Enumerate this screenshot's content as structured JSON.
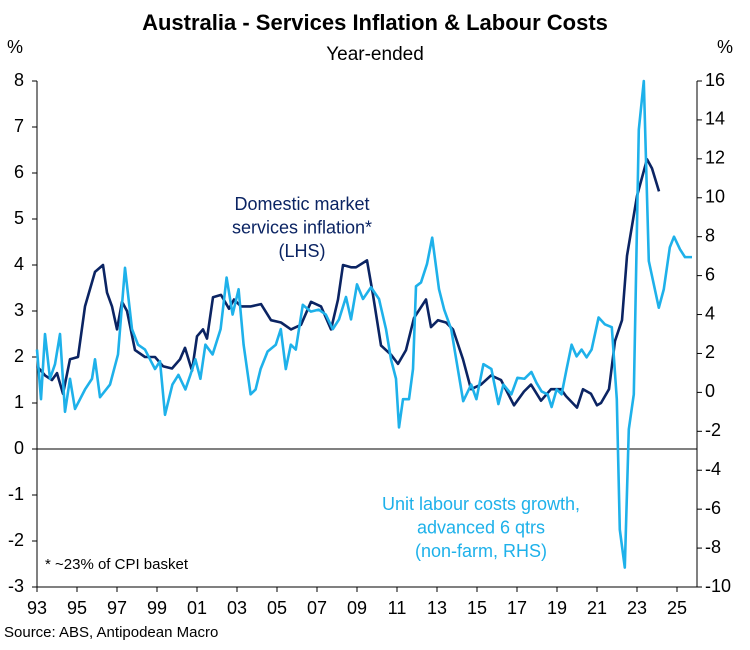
{
  "chart_data": {
    "type": "line",
    "title": "Australia - Services Inflation & Labour Costs",
    "subtitle": "Year-ended",
    "ylabel": "%",
    "y2label": "%",
    "xlim": [
      1993,
      2026
    ],
    "xticks": [
      {
        "value": 1993,
        "label": "93"
      },
      {
        "value": 1995,
        "label": "95"
      },
      {
        "value": 1997,
        "label": "97"
      },
      {
        "value": 1999,
        "label": "99"
      },
      {
        "value": 2001,
        "label": "01"
      },
      {
        "value": 2003,
        "label": "03"
      },
      {
        "value": 2005,
        "label": "05"
      },
      {
        "value": 2007,
        "label": "07"
      },
      {
        "value": 2009,
        "label": "09"
      },
      {
        "value": 2011,
        "label": "11"
      },
      {
        "value": 2013,
        "label": "13"
      },
      {
        "value": 2015,
        "label": "15"
      },
      {
        "value": 2017,
        "label": "17"
      },
      {
        "value": 2019,
        "label": "19"
      },
      {
        "value": 2021,
        "label": "21"
      },
      {
        "value": 2023,
        "label": "23"
      },
      {
        "value": 2025,
        "label": "25"
      }
    ],
    "ylim": [
      -3,
      8
    ],
    "yticks": [
      -3,
      -2,
      -1,
      0,
      1,
      2,
      3,
      4,
      5,
      6,
      7,
      8
    ],
    "y2lim": [
      -10,
      16
    ],
    "y2ticks": [
      -10,
      -8,
      -6,
      -4,
      -2,
      0,
      2,
      4,
      6,
      8,
      10,
      12,
      14,
      16
    ],
    "series": [
      {
        "name": "Domestic market services inflation* (LHS)",
        "color": "#0b2463",
        "x": [
          1993.0,
          1993.4,
          1993.75,
          1994.0,
          1994.3,
          1994.65,
          1995.05,
          1995.4,
          1995.9,
          1996.3,
          1996.5,
          1996.75,
          1997.0,
          1997.25,
          1997.5,
          1997.9,
          1998.4,
          1998.9,
          1999.3,
          1999.75,
          2000.15,
          2000.4,
          2000.75,
          2001.0,
          2001.3,
          2001.5,
          2001.8,
          2002.2,
          2002.6,
          2002.85,
          2003.2,
          2003.7,
          2004.2,
          2004.7,
          2005.2,
          2005.7,
          2006.2,
          2006.7,
          2007.2,
          2007.7,
          2008.05,
          2008.3,
          2008.7,
          2008.95,
          2009.5,
          2009.8,
          2010.2,
          2010.7,
          2011.05,
          2011.45,
          2011.85,
          2012.45,
          2012.7,
          2013.05,
          2013.45,
          2013.8,
          2014.3,
          2014.7,
          2015.2,
          2015.7,
          2016.2,
          2016.85,
          2017.35,
          2017.7,
          2018.2,
          2018.7,
          2019.2,
          2019.45,
          2020.0,
          2020.3,
          2020.7,
          2021.0,
          2021.2,
          2021.6,
          2021.9,
          2022.25,
          2022.5,
          2023.0,
          2023.5,
          2023.75,
          2024.1
        ],
        "values": [
          1.8,
          1.6,
          1.5,
          1.65,
          1.2,
          1.95,
          2.0,
          3.1,
          3.85,
          4.0,
          3.4,
          3.1,
          2.6,
          3.2,
          3.0,
          2.15,
          2.0,
          2.0,
          1.8,
          1.75,
          1.95,
          2.2,
          1.7,
          2.45,
          2.6,
          2.4,
          3.3,
          3.35,
          3.05,
          3.25,
          3.1,
          3.1,
          3.15,
          2.8,
          2.75,
          2.6,
          2.7,
          3.2,
          3.1,
          2.6,
          3.25,
          4.0,
          3.95,
          3.95,
          4.1,
          3.35,
          2.25,
          2.05,
          1.85,
          2.15,
          2.85,
          3.25,
          2.65,
          2.8,
          2.75,
          2.6,
          1.95,
          1.3,
          1.4,
          1.6,
          1.5,
          0.95,
          1.25,
          1.4,
          1.05,
          1.3,
          1.3,
          1.15,
          0.9,
          1.3,
          1.2,
          0.95,
          1.0,
          1.3,
          2.35,
          2.8,
          4.2,
          5.5,
          6.3,
          6.1,
          5.6
        ]
      },
      {
        "name": "Unit labour costs growth, advanced 6 qtrs (non-farm, RHS)",
        "color": "#1eb1ea",
        "axis": "y2",
        "x": [
          1993.0,
          1993.2,
          1993.4,
          1993.65,
          1993.9,
          1994.15,
          1994.4,
          1994.65,
          1994.9,
          1995.4,
          1995.75,
          1995.9,
          1996.15,
          1996.65,
          1997.05,
          1997.4,
          1997.75,
          1998.05,
          1998.4,
          1998.65,
          1998.9,
          1999.15,
          1999.4,
          1999.77,
          2000.07,
          2000.42,
          2000.67,
          2000.92,
          2001.17,
          2001.42,
          2001.78,
          2002.18,
          2002.48,
          2002.78,
          2003.08,
          2003.33,
          2003.68,
          2003.93,
          2004.18,
          2004.53,
          2004.94,
          2005.19,
          2005.44,
          2005.69,
          2005.94,
          2006.29,
          2006.69,
          2007.09,
          2007.44,
          2007.79,
          2008.1,
          2008.45,
          2008.7,
          2009.0,
          2009.3,
          2009.7,
          2010.1,
          2010.45,
          2010.7,
          2010.95,
          2011.1,
          2011.3,
          2011.6,
          2011.8,
          2011.95,
          2012.2,
          2012.5,
          2012.76,
          2013.1,
          2013.36,
          2013.71,
          2013.96,
          2014.31,
          2014.71,
          2014.97,
          2015.32,
          2015.72,
          2016.07,
          2016.32,
          2016.72,
          2017.02,
          2017.37,
          2017.72,
          2017.97,
          2018.23,
          2018.53,
          2018.73,
          2018.98,
          2019.23,
          2019.48,
          2019.73,
          2019.98,
          2020.23,
          2020.48,
          2020.73,
          2021.08,
          2021.39,
          2021.74,
          2021.99,
          2022.14,
          2022.39,
          2022.59,
          2022.84,
          2023.09,
          2023.34,
          2023.59,
          2023.84,
          2024.09,
          2024.34,
          2024.64,
          2024.85,
          2025.15,
          2025.4,
          2025.75
        ],
        "values": [
          2.2,
          -0.35,
          3.0,
          0.7,
          1.45,
          3.0,
          -1.0,
          0.7,
          -0.85,
          0.15,
          0.7,
          1.7,
          -0.25,
          0.4,
          1.95,
          6.4,
          3.25,
          2.45,
          2.2,
          1.7,
          1.2,
          1.6,
          -1.15,
          0.4,
          0.9,
          0.15,
          0.9,
          1.7,
          0.7,
          2.45,
          1.95,
          3.25,
          5.9,
          4.0,
          5.3,
          2.45,
          -0.1,
          0.15,
          1.2,
          2.1,
          2.45,
          3.25,
          1.2,
          2.45,
          2.2,
          4.5,
          4.15,
          4.25,
          4.0,
          3.25,
          3.75,
          4.9,
          3.75,
          5.55,
          4.8,
          5.4,
          4.8,
          3.25,
          1.7,
          0.7,
          -1.8,
          -0.35,
          -0.35,
          1.2,
          5.45,
          5.65,
          6.6,
          7.95,
          5.3,
          4.25,
          3.25,
          1.7,
          -0.45,
          0.4,
          -0.35,
          1.45,
          1.2,
          -0.6,
          0.4,
          -0.1,
          0.75,
          0.7,
          1.05,
          0.5,
          0.05,
          -0.1,
          -0.75,
          0.15,
          -0.1,
          1.2,
          2.45,
          1.85,
          2.2,
          1.8,
          2.2,
          3.85,
          3.5,
          3.35,
          -0.35,
          -7.05,
          -9.0,
          -1.9,
          -0.1,
          13.5,
          16.0,
          6.75,
          5.55,
          4.35,
          5.3,
          7.45,
          8.0,
          7.35,
          6.95,
          6.95
        ]
      }
    ],
    "annotations": [
      {
        "lines": [
          "Domestic market",
          "services inflation*",
          "(LHS)"
        ],
        "color": "#0b2463"
      },
      {
        "lines": [
          "Unit labour costs growth,",
          "advanced 6 qtrs",
          "(non-farm, RHS)"
        ],
        "color": "#1eb1ea"
      }
    ],
    "footnote": "* ~23% of CPI basket",
    "source": "Source: ABS, Antipodean Macro"
  }
}
